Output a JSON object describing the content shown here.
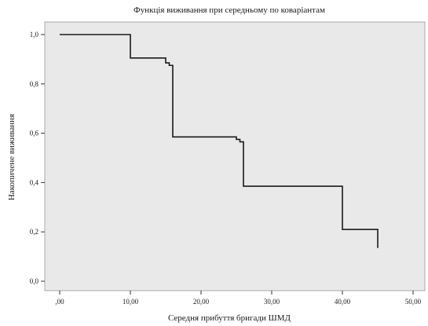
{
  "chart_data": {
    "type": "line",
    "title": "Функція виживання при середньому по коваріантам",
    "xlabel": "Середня прибуття бригади ШМД",
    "ylabel": "Накопичене виживання",
    "xlim": [
      0,
      50
    ],
    "ylim": [
      0,
      1
    ],
    "x_ticks": [
      ",00",
      "10,00",
      "20,00",
      "30,00",
      "40,00",
      "50,00"
    ],
    "y_ticks": [
      "0,0",
      "0,2",
      "0,4",
      "0,6",
      "0,8",
      "1,0"
    ],
    "grid": false,
    "series": [
      {
        "step": true,
        "x": [
          0,
          10,
          15,
          15.5,
          16,
          25,
          25.5,
          26,
          40,
          45,
          45
        ],
        "y": [
          1.0,
          0.905,
          0.885,
          0.875,
          0.585,
          0.575,
          0.565,
          0.385,
          0.21,
          0.21,
          0.135
        ]
      }
    ],
    "colors": {
      "plot_background": "#e9e9e9",
      "line": "#1a1a1a"
    }
  }
}
